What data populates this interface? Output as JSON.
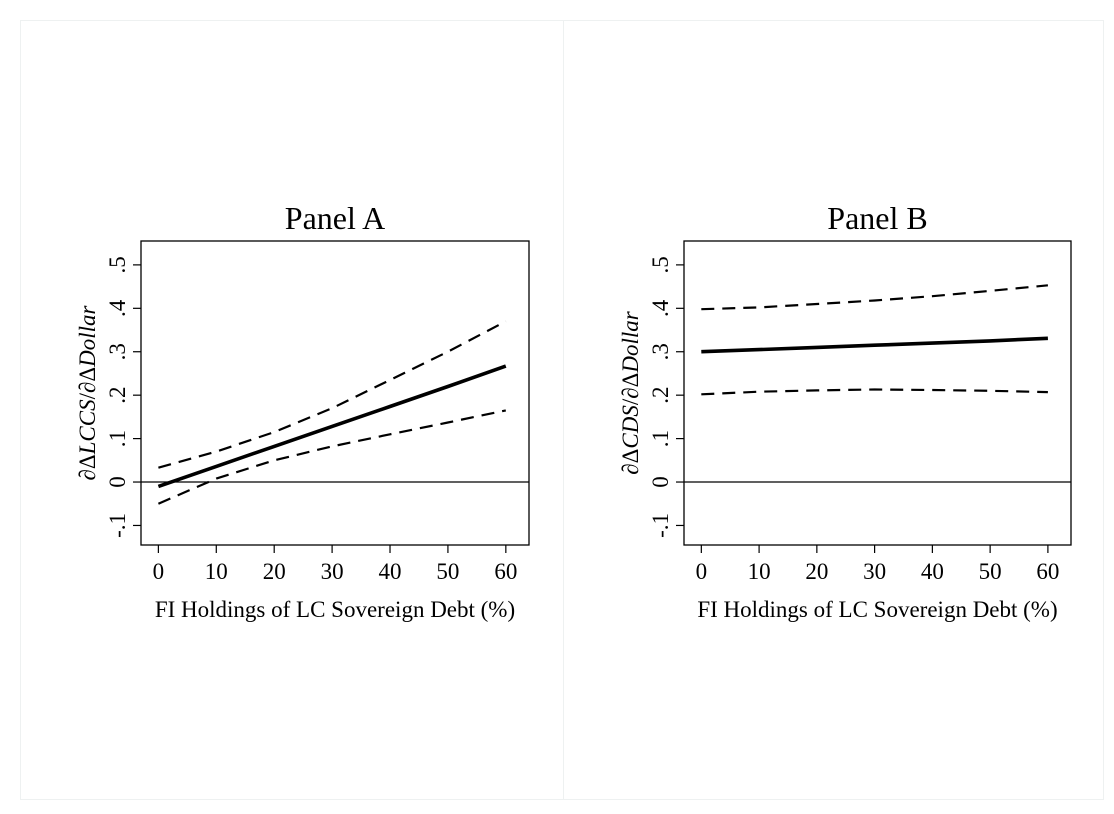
{
  "chart_data": [
    {
      "type": "line",
      "title": "Panel A",
      "xlabel": "FI Holdings of LC Sovereign Debt (%)",
      "ylabel_parts": [
        {
          "text": "∂Δ",
          "italic": false
        },
        {
          "text": "LCCS",
          "italic": true
        },
        {
          "text": "/∂Δ",
          "italic": false
        },
        {
          "text": "Dollar",
          "italic": true
        }
      ],
      "xlim": [
        -3,
        64
      ],
      "ylim": [
        -0.145,
        0.555
      ],
      "xticks": [
        0,
        10,
        20,
        30,
        40,
        50,
        60
      ],
      "xtick_labels": [
        "0",
        "10",
        "20",
        "30",
        "40",
        "50",
        "60"
      ],
      "yticks": [
        -0.1,
        0,
        0.1,
        0.2,
        0.3,
        0.4,
        0.5
      ],
      "ytick_labels": [
        "-.1",
        "0",
        ".1",
        ".2",
        ".3",
        ".4",
        ".5"
      ],
      "reference_line_y": 0,
      "grid": false,
      "series": [
        {
          "style": "solid",
          "x": [
            0,
            10,
            20,
            30,
            40,
            50,
            60
          ],
          "y": [
            -0.01,
            0.036,
            0.082,
            0.128,
            0.174,
            0.22,
            0.267
          ]
        },
        {
          "style": "dashed",
          "x": [
            0,
            10,
            20,
            30,
            40,
            50,
            60
          ],
          "y": [
            0.033,
            0.07,
            0.115,
            0.17,
            0.235,
            0.3,
            0.37
          ]
        },
        {
          "style": "dashed",
          "x": [
            0,
            10,
            20,
            30,
            40,
            50,
            60
          ],
          "y": [
            -0.05,
            0.008,
            0.05,
            0.082,
            0.11,
            0.137,
            0.165
          ]
        }
      ]
    },
    {
      "type": "line",
      "title": "Panel B",
      "xlabel": "FI Holdings of LC Sovereign Debt (%)",
      "ylabel_parts": [
        {
          "text": "∂Δ",
          "italic": false
        },
        {
          "text": "CDS",
          "italic": true
        },
        {
          "text": "/∂Δ",
          "italic": false
        },
        {
          "text": "Dollar",
          "italic": true
        }
      ],
      "xlim": [
        -3,
        64
      ],
      "ylim": [
        -0.145,
        0.555
      ],
      "xticks": [
        0,
        10,
        20,
        30,
        40,
        50,
        60
      ],
      "xtick_labels": [
        "0",
        "10",
        "20",
        "30",
        "40",
        "50",
        "60"
      ],
      "yticks": [
        -0.1,
        0,
        0.1,
        0.2,
        0.3,
        0.4,
        0.5
      ],
      "ytick_labels": [
        "-.1",
        "0",
        ".1",
        ".2",
        ".3",
        ".4",
        ".5"
      ],
      "reference_line_y": 0,
      "grid": false,
      "series": [
        {
          "style": "solid",
          "x": [
            0,
            10,
            20,
            30,
            40,
            50,
            60
          ],
          "y": [
            0.3,
            0.305,
            0.31,
            0.315,
            0.32,
            0.325,
            0.331
          ]
        },
        {
          "style": "dashed",
          "x": [
            0,
            10,
            20,
            30,
            40,
            50,
            60
          ],
          "y": [
            0.398,
            0.402,
            0.41,
            0.418,
            0.428,
            0.44,
            0.453
          ]
        },
        {
          "style": "dashed",
          "x": [
            0,
            10,
            20,
            30,
            40,
            50,
            60
          ],
          "y": [
            0.202,
            0.208,
            0.211,
            0.213,
            0.212,
            0.21,
            0.207
          ]
        }
      ]
    }
  ]
}
